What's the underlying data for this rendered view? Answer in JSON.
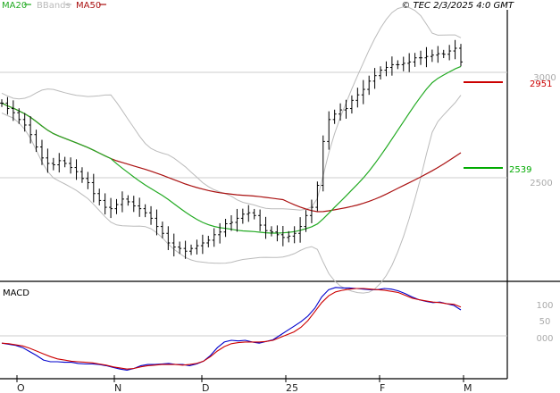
{
  "header": {
    "legend": [
      {
        "label": "MA20",
        "color": "#22aa22"
      },
      {
        "label": "BBands",
        "color": "#bbbbbb"
      },
      {
        "label": "MA50",
        "color": "#aa1111"
      }
    ],
    "source": "© TEC 2/3/2025 4:0 GMT"
  },
  "chart_data": [
    {
      "type": "line",
      "name": "price",
      "y_ticks": [
        "2500",
        "3000"
      ],
      "ylim": [
        2130,
        3120
      ],
      "x_months": [
        "O",
        "N",
        "D",
        "25",
        "F",
        "M"
      ],
      "markers": [
        {
          "label": "2951",
          "value": 2951,
          "color": "#cc0000"
        },
        {
          "label": "2539",
          "value": 2539,
          "color": "#00aa00"
        }
      ],
      "price_close_series": [
        2780,
        2760,
        2745,
        2720,
        2700,
        2665,
        2620,
        2580,
        2560,
        2555,
        2570,
        2560,
        2545,
        2530,
        2505,
        2490,
        2450,
        2425,
        2400,
        2395,
        2410,
        2430,
        2420,
        2405,
        2395,
        2380,
        2360,
        2330,
        2305,
        2270,
        2255,
        2250,
        2240,
        2250,
        2260,
        2270,
        2280,
        2300,
        2310,
        2340,
        2345,
        2360,
        2375,
        2380,
        2370,
        2335,
        2315,
        2310,
        2300,
        2290,
        2295,
        2305,
        2330,
        2370,
        2400,
        2480,
        2640,
        2720,
        2740,
        2755,
        2760,
        2790,
        2810,
        2830,
        2860,
        2880,
        2900,
        2910,
        2920,
        2920,
        2925,
        2930,
        2945,
        2945,
        2950,
        2955,
        2960,
        2958,
        2970,
        2980,
        2930
      ],
      "series": [
        {
          "name": "MA20",
          "color": "#22aa22"
        },
        {
          "name": "BBands",
          "color": "#bbbbbb"
        },
        {
          "name": "MA50",
          "color": "#aa1111"
        }
      ]
    },
    {
      "type": "line",
      "name": "macd",
      "title": "MACD",
      "y_ticks": [
        "100",
        "50",
        "000"
      ],
      "ylim": [
        -60,
        105
      ],
      "series": [
        {
          "name": "",
          "color": "#0000cc",
          "values": [
            0,
            -2,
            -4,
            -8,
            -15,
            -22,
            -30,
            -33,
            -33,
            -34,
            -34,
            -36,
            -37,
            -37,
            -38,
            -40,
            -43,
            -46,
            -48,
            -45,
            -40,
            -38,
            -38,
            -37,
            -36,
            -38,
            -38,
            -40,
            -37,
            -32,
            -22,
            -8,
            2,
            5,
            4,
            5,
            2,
            0,
            3,
            6,
            14,
            22,
            30,
            38,
            48,
            62,
            82,
            95,
            99,
            98,
            98,
            97,
            96,
            95,
            95,
            97,
            96,
            93,
            88,
            82,
            77,
            74,
            72,
            73,
            70,
            67,
            59
          ]
        },
        {
          "name": "",
          "color": "#cc0000",
          "values": [
            0,
            -1,
            -3,
            -5,
            -9,
            -14,
            -19,
            -24,
            -28,
            -30,
            -32,
            -33,
            -34,
            -35,
            -37,
            -39,
            -42,
            -44,
            -46,
            -45,
            -42,
            -40,
            -39,
            -38,
            -38,
            -38,
            -39,
            -38,
            -36,
            -32,
            -24,
            -14,
            -6,
            -1,
            1,
            2,
            2,
            2,
            3,
            5,
            10,
            15,
            20,
            28,
            40,
            56,
            72,
            84,
            91,
            94,
            96,
            97,
            97,
            96,
            95,
            94,
            92,
            90,
            85,
            80,
            77,
            75,
            73,
            72,
            70,
            69,
            64
          ]
        }
      ]
    }
  ]
}
